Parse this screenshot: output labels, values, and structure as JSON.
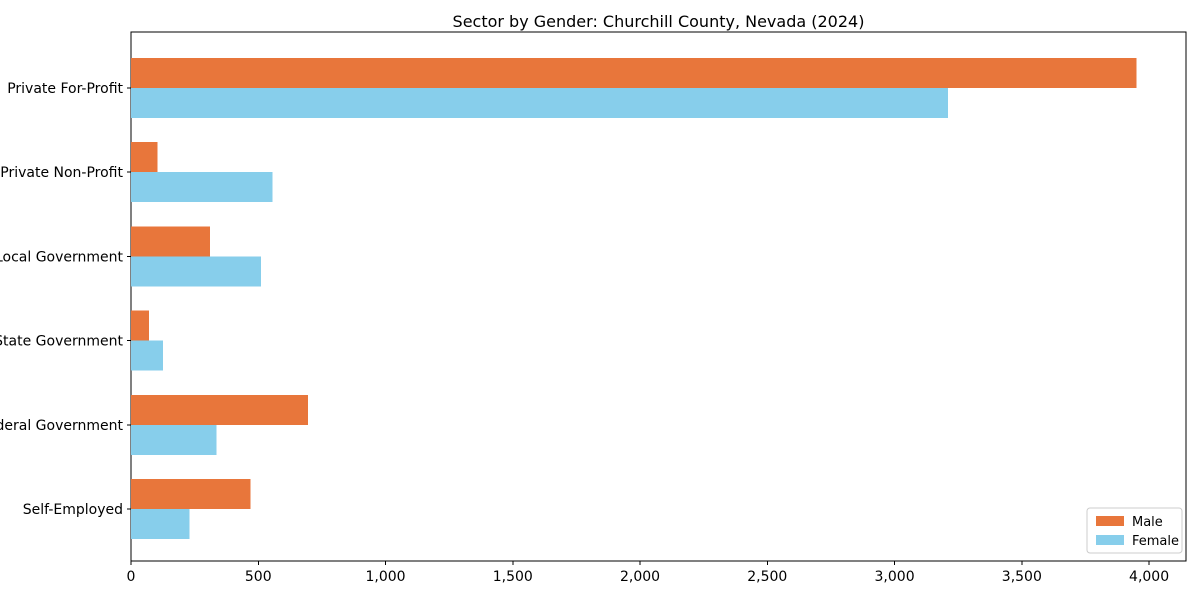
{
  "title": "Sector by Gender: Churchill County, Nevada (2024)",
  "chart_data": {
    "type": "bar",
    "orientation": "horizontal",
    "title": "Sector by Gender: Churchill County, Nevada (2024)",
    "categories": [
      "Private For-Profit",
      "Private Non-Profit",
      "Local Government",
      "State Government",
      "Federal Government",
      "Self-Employed"
    ],
    "series": [
      {
        "name": "Male",
        "color": "#E8763B",
        "values": [
          3950,
          105,
          310,
          70,
          695,
          470
        ]
      },
      {
        "name": "Female",
        "color": "#87CEEB",
        "values": [
          3210,
          555,
          510,
          125,
          335,
          230
        ]
      }
    ],
    "xlabel": "",
    "ylabel": "",
    "xlim": [
      0,
      4145
    ],
    "xticks": [
      0,
      500,
      1000,
      1500,
      2000,
      2500,
      3000,
      3500,
      4000
    ],
    "xtick_labels": [
      "0",
      "500",
      "1,000",
      "1,500",
      "2,000",
      "2,500",
      "3,000",
      "3,500",
      "4,000"
    ],
    "grid": false,
    "legend": {
      "position": "lower right",
      "labels": [
        "Male",
        "Female"
      ]
    },
    "colors": {
      "axis": "#000000",
      "legend_border": "#cccccc",
      "background": "#ffffff"
    }
  }
}
